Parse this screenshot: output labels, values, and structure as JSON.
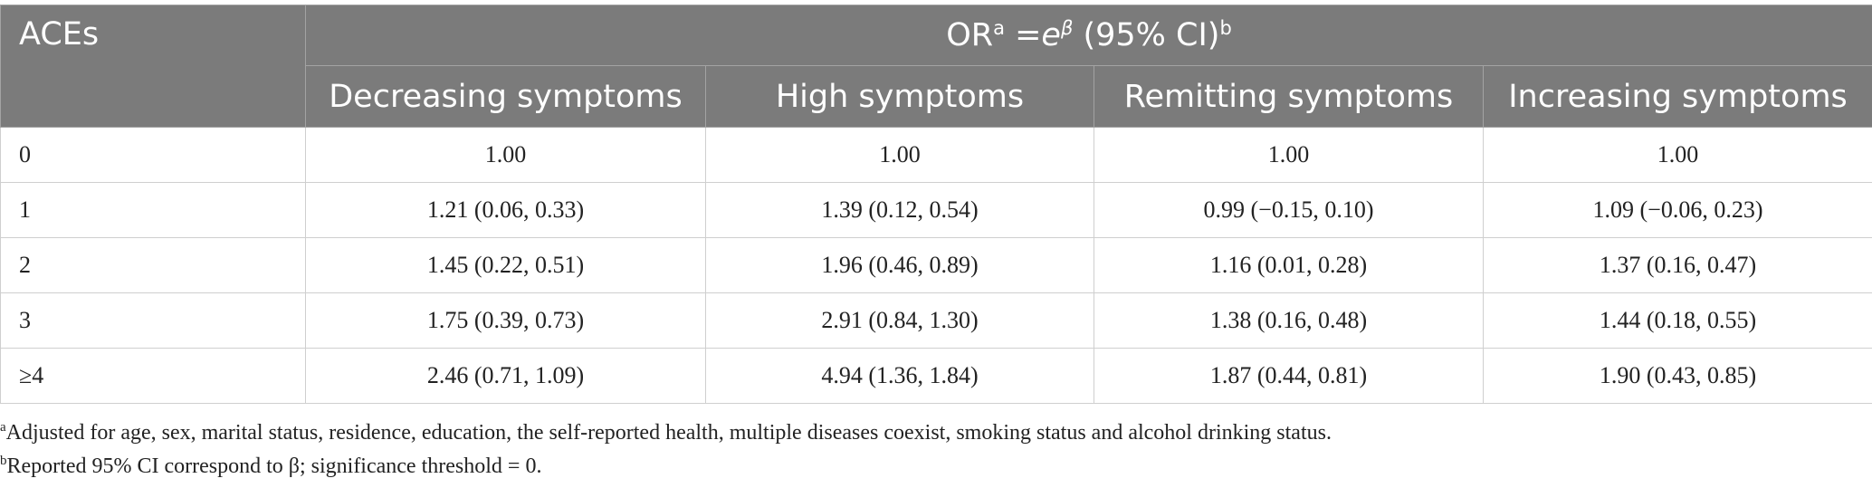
{
  "table": {
    "stub_header": "ACEs",
    "group_header": {
      "prefix": "OR",
      "sup_a": "a",
      "eq": " =",
      "e": "e",
      "beta": "β",
      "ci": " (95% CI)",
      "sup_b": "b"
    },
    "columns": [
      "Decreasing symptoms",
      "High symptoms",
      "Remitting symptoms",
      "Increasing symptoms"
    ],
    "rows": [
      {
        "label": "0",
        "cells": [
          "1.00",
          "1.00",
          "1.00",
          "1.00"
        ]
      },
      {
        "label": "1",
        "cells": [
          "1.21 (0.06, 0.33)",
          "1.39 (0.12, 0.54)",
          "0.99 (−0.15, 0.10)",
          "1.09 (−0.06, 0.23)"
        ]
      },
      {
        "label": "2",
        "cells": [
          "1.45 (0.22, 0.51)",
          "1.96 (0.46, 0.89)",
          "1.16 (0.01, 0.28)",
          "1.37 (0.16, 0.47)"
        ]
      },
      {
        "label": "3",
        "cells": [
          "1.75 (0.39, 0.73)",
          "2.91 (0.84, 1.30)",
          "1.38 (0.16, 0.48)",
          "1.44 (0.18, 0.55)"
        ]
      },
      {
        "label": "≥4",
        "cells": [
          "2.46 (0.71, 1.09)",
          "4.94 (1.36, 1.84)",
          "1.87 (0.44, 0.81)",
          "1.90 (0.43, 0.85)"
        ]
      }
    ]
  },
  "footnotes": [
    {
      "marker": "a",
      "text": "Adjusted for age, sex, marital status, residence, education, the self-reported health, multiple diseases coexist, smoking status and alcohol drinking status."
    },
    {
      "marker": "b",
      "text": "Reported 95% CI correspond to β; significance threshold = 0."
    }
  ]
}
